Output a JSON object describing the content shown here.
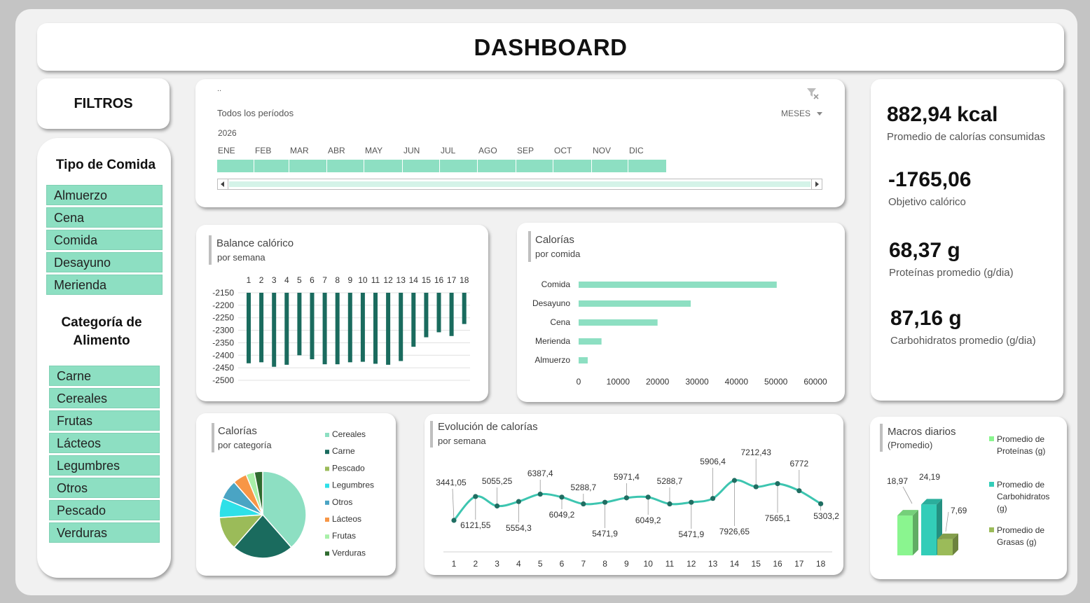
{
  "header": {
    "title": "DASHBOARD"
  },
  "filters": {
    "title": "FILTROS"
  },
  "slicer_meal": {
    "title": "Tipo de Comida",
    "items": [
      "Almuerzo",
      "Cena",
      "Comida",
      "Desayuno",
      "Merienda"
    ]
  },
  "slicer_category": {
    "title_line1": "Categoría de",
    "title_line2": "Alimento",
    "items": [
      "Carne",
      "Cereales",
      "Frutas",
      "Lácteos",
      "Legumbres",
      "Otros",
      "Pescado",
      "Verduras"
    ]
  },
  "timeline": {
    "caption": "..",
    "period_label": "Todos los períodos",
    "year": "2026",
    "level": "MESES",
    "months": [
      "ENE",
      "FEB",
      "MAR",
      "ABR",
      "MAY",
      "JUN",
      "JUL",
      "AGO",
      "SEP",
      "OCT",
      "NOV",
      "DIC"
    ]
  },
  "kpis": [
    {
      "value": "882,94 kcal",
      "label": "Promedio de calorías consumidas"
    },
    {
      "value": "-1765,06",
      "label": "Objetivo calórico"
    },
    {
      "value": "68,37 g",
      "label": "Proteínas promedio (g/dia)"
    },
    {
      "value": "87,16 g",
      "label": "Carbohidratos promedio (g/dia)"
    }
  ],
  "colors": {
    "mint": "#8ddfc2",
    "dark_teal": "#1a6b5e",
    "line_teal": "#3dc5b0",
    "marker": "#206e62"
  },
  "chart_data": [
    {
      "id": "balance",
      "type": "bar",
      "title": "Balance calórico",
      "subtitle": "por semana",
      "categories": [
        "1",
        "2",
        "3",
        "4",
        "5",
        "6",
        "7",
        "8",
        "9",
        "10",
        "11",
        "12",
        "13",
        "14",
        "15",
        "16",
        "17",
        "18"
      ],
      "values": [
        -2432,
        -2428,
        -2446,
        -2438,
        -2400,
        -2416,
        -2436,
        -2436,
        -2428,
        -2426,
        -2434,
        -2438,
        -2423,
        -2366,
        -2328,
        -2308,
        -2323,
        -2275
      ],
      "ylim": [
        -2500,
        -2150
      ],
      "yticks": [
        "-2150",
        "-2200",
        "-2250",
        "-2300",
        "-2350",
        "-2400",
        "-2450",
        "-2500"
      ],
      "color": "#1a6b5e"
    },
    {
      "id": "por_comida",
      "type": "bar",
      "orientation": "horizontal",
      "title": "Calorías",
      "subtitle": "por comida",
      "categories": [
        "Comida",
        "Desayuno",
        "Cena",
        "Merienda",
        "Almuerzo"
      ],
      "values": [
        50200,
        28400,
        20000,
        5800,
        2300
      ],
      "xlim": [
        0,
        60000
      ],
      "xticks": [
        "0",
        "10000",
        "20000",
        "30000",
        "40000",
        "50000",
        "60000"
      ],
      "color": "#8ddfc2"
    },
    {
      "id": "por_categoria",
      "type": "pie",
      "title": "Calorías",
      "subtitle": "por categoría",
      "legend_position": "right",
      "labels": [
        "Cereales",
        "Carne",
        "Pescado",
        "Legumbres",
        "Otros",
        "Lácteos",
        "Frutas",
        "Verduras"
      ],
      "values": [
        37,
        22,
        12,
        7,
        7,
        5,
        3,
        3
      ],
      "colors": [
        "#8ddfc2",
        "#1a6b5e",
        "#9bbb59",
        "#2ee0e8",
        "#4aa4c4",
        "#f79646",
        "#a8f0a8",
        "#2f6b2f"
      ]
    },
    {
      "id": "evolucion",
      "type": "line",
      "title": "Evolución de calorías",
      "subtitle": "por semana",
      "x": [
        "1",
        "2",
        "3",
        "4",
        "5",
        "6",
        "7",
        "8",
        "9",
        "10",
        "11",
        "12",
        "13",
        "14",
        "15",
        "16",
        "17",
        "18"
      ],
      "values": [
        3441.05,
        6121.55,
        5055.25,
        5554.3,
        6387.4,
        6049.2,
        5288.7,
        5471.9,
        5971.4,
        6049.2,
        5288.7,
        5471.9,
        5906.4,
        7926.65,
        7212.43,
        7565.1,
        6772,
        5303.2
      ],
      "data_labels": [
        "3441,05",
        "6121,55",
        "5055,25",
        "5554,3",
        "6387,4",
        "6049,2",
        "5288,7",
        "5471,9",
        "5971,4",
        "6049,2",
        "5288,7",
        "5471,9",
        "5906,4",
        "7926,65",
        "7212,43",
        "7565,1",
        "6772",
        "5303,2"
      ],
      "color": "#3dc5b0"
    },
    {
      "id": "macros",
      "type": "bar",
      "title": "Macros diarios",
      "subtitle": "(Promedio)",
      "legend_position": "right",
      "series": [
        {
          "name_line1": "Promedio de",
          "name_line2": "Proteínas (g)",
          "value": 18.97,
          "label": "18,97",
          "color": "#8af58f"
        },
        {
          "name_line1": "Promedio de",
          "name_line2": "Carbohidratos",
          "name_line3": "(g)",
          "value": 24.19,
          "label": "24,19",
          "color": "#33cdb8"
        },
        {
          "name_line1": "Promedio de",
          "name_line2": "Grasas (g)",
          "value": 7.69,
          "label": "7,69",
          "color": "#9bbb59"
        }
      ]
    }
  ]
}
